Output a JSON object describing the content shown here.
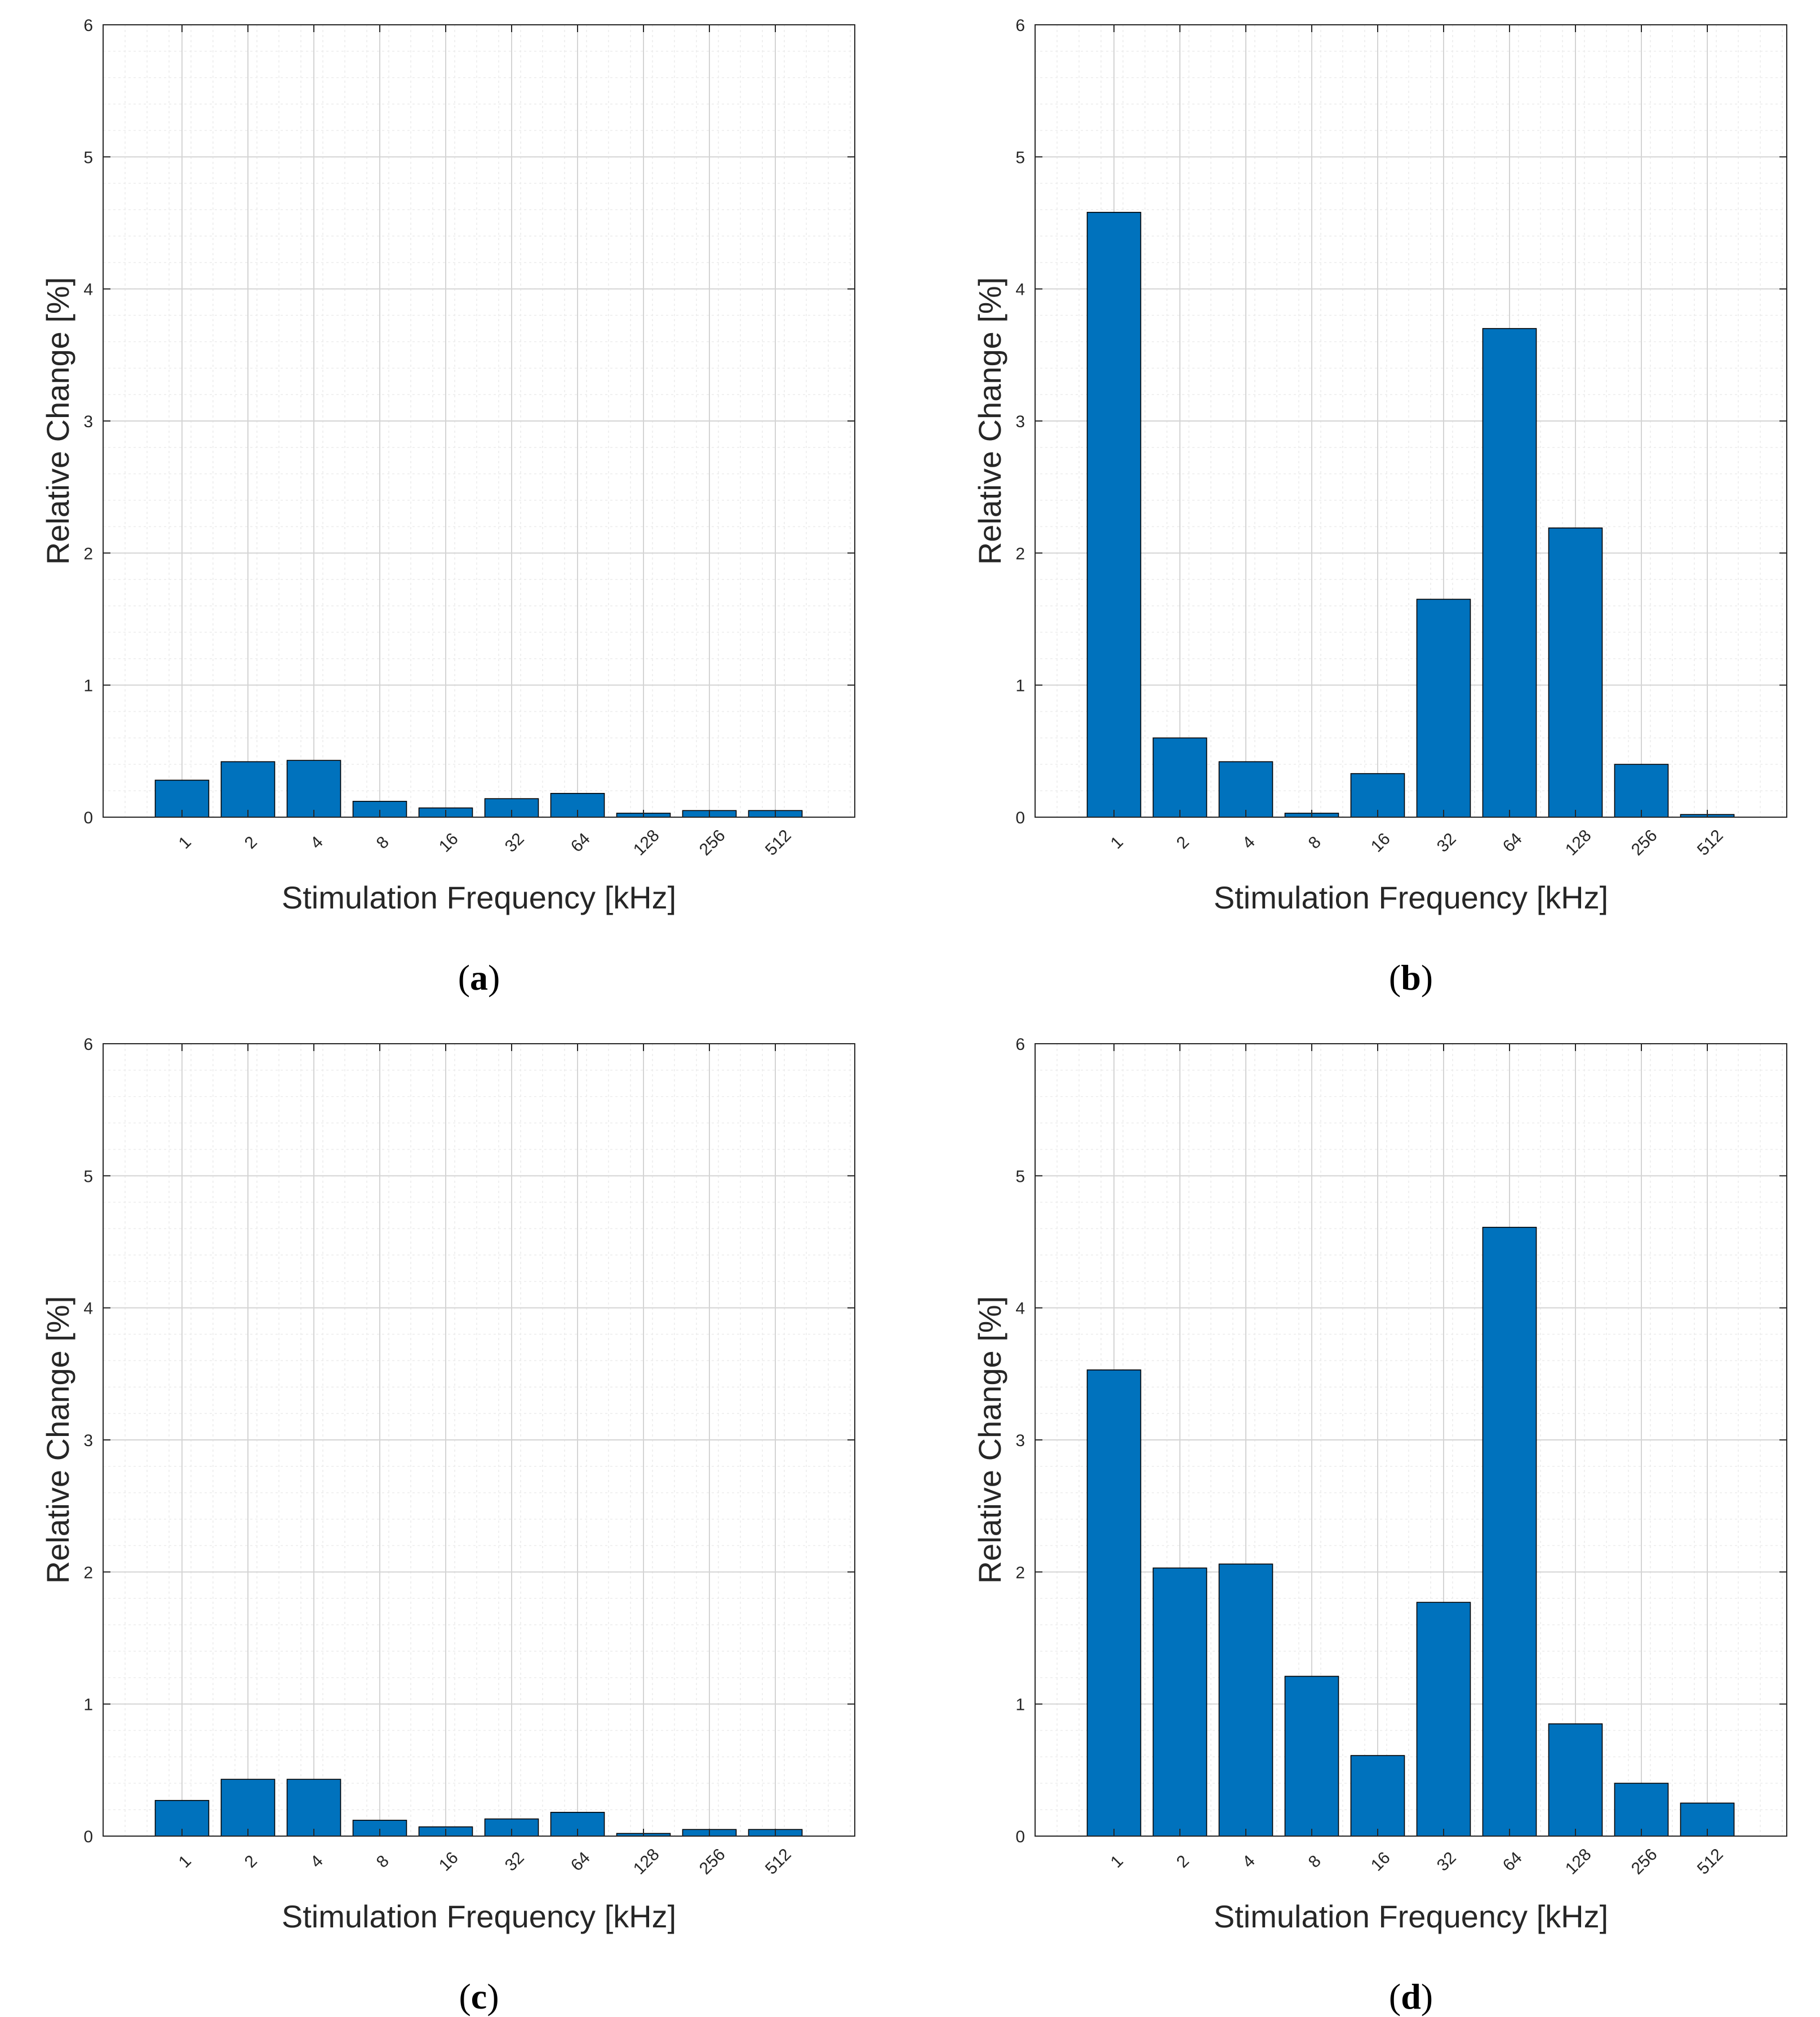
{
  "colors": {
    "bar_fill": "#0072BD",
    "bar_edge": "#000000",
    "axis": "#262626",
    "grid_major": "#d4d4d4",
    "grid_minor": "#ececec"
  },
  "chart_data": [
    {
      "type": "bar",
      "panel": "a",
      "caption_open": "(",
      "caption_letter": "a",
      "caption_close": ")",
      "categories": [
        "1",
        "2",
        "4",
        "8",
        "16",
        "32",
        "64",
        "128",
        "256",
        "512"
      ],
      "values": [
        0.28,
        0.42,
        0.43,
        0.12,
        0.07,
        0.14,
        0.18,
        0.03,
        0.05,
        0.05
      ],
      "xlabel": "Stimulation Frequency [kHz]",
      "ylabel": "Relative Change [%]",
      "ylim": [
        0,
        6
      ],
      "yticks": [
        "0",
        "1",
        "2",
        "3",
        "4",
        "5",
        "6"
      ],
      "grid": true,
      "minor_grid": true
    },
    {
      "type": "bar",
      "panel": "b",
      "caption_open": "(",
      "caption_letter": "b",
      "caption_close": ")",
      "categories": [
        "1",
        "2",
        "4",
        "8",
        "16",
        "32",
        "64",
        "128",
        "256",
        "512"
      ],
      "values": [
        4.58,
        0.6,
        0.42,
        0.03,
        0.33,
        1.65,
        3.7,
        2.19,
        0.4,
        0.02
      ],
      "xlabel": "Stimulation Frequency [kHz]",
      "ylabel": "Relative Change [%]",
      "ylim": [
        0,
        6
      ],
      "yticks": [
        "0",
        "1",
        "2",
        "3",
        "4",
        "5",
        "6"
      ],
      "grid": true,
      "minor_grid": true
    },
    {
      "type": "bar",
      "panel": "c",
      "caption_open": "(",
      "caption_letter": "c",
      "caption_close": ")",
      "categories": [
        "1",
        "2",
        "4",
        "8",
        "16",
        "32",
        "64",
        "128",
        "256",
        "512"
      ],
      "values": [
        0.27,
        0.43,
        0.43,
        0.12,
        0.07,
        0.13,
        0.18,
        0.02,
        0.05,
        0.05
      ],
      "xlabel": "Stimulation Frequency [kHz]",
      "ylabel": "Relative Change [%]",
      "ylim": [
        0,
        6
      ],
      "yticks": [
        "0",
        "1",
        "2",
        "3",
        "4",
        "5",
        "6"
      ],
      "grid": true,
      "minor_grid": true
    },
    {
      "type": "bar",
      "panel": "d",
      "caption_open": "(",
      "caption_letter": "d",
      "caption_close": ")",
      "categories": [
        "1",
        "2",
        "4",
        "8",
        "16",
        "32",
        "64",
        "128",
        "256",
        "512"
      ],
      "values": [
        3.53,
        2.03,
        2.06,
        1.21,
        0.61,
        1.77,
        4.61,
        0.85,
        0.4,
        0.25
      ],
      "xlabel": "Stimulation Frequency [kHz]",
      "ylabel": "Relative Change [%]",
      "ylim": [
        0,
        6
      ],
      "yticks": [
        "0",
        "1",
        "2",
        "3",
        "4",
        "5",
        "6"
      ],
      "grid": true,
      "minor_grid": true
    }
  ]
}
